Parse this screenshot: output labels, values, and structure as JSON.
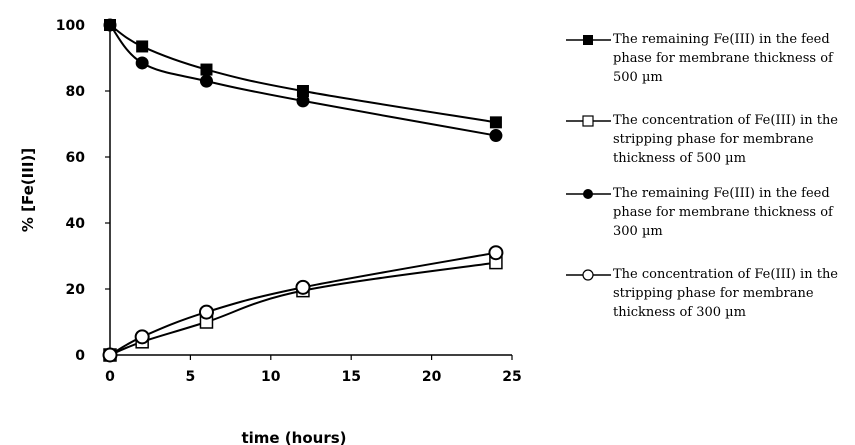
{
  "chart_data": {
    "type": "line",
    "xlabel": "time (hours)",
    "ylabel": "% [Fe(III)]",
    "xlim": [
      0,
      25
    ],
    "ylim": [
      0,
      100
    ],
    "xticks": [
      "0",
      "5",
      "10",
      "15",
      "20",
      "25"
    ],
    "yticks": [
      "0",
      "20",
      "40",
      "60",
      "80",
      "100"
    ],
    "grid": false,
    "legend_position": "right",
    "x": [
      0,
      2,
      6,
      12,
      24
    ],
    "series": [
      {
        "name": "The remaining Fe(III) in the feed phase for membrane thickness of 500 µm",
        "marker": "filled-square",
        "values": [
          100,
          93.5,
          86.5,
          80,
          70.5
        ]
      },
      {
        "name": "The concentration of Fe(III) in the stripping phase for membrane thickness of 500 µm",
        "marker": "open-square",
        "values": [
          0,
          4,
          10,
          19.5,
          28
        ]
      },
      {
        "name": "The remaining Fe(III) in the feed phase for membrane thickness of 300 µm",
        "marker": "filled-circle",
        "values": [
          100,
          88.5,
          83,
          77,
          66.5
        ]
      },
      {
        "name": "The concentration of Fe(III) in the stripping phase for membrane thickness of 300 µm",
        "marker": "open-circle",
        "values": [
          0,
          5.5,
          13,
          20.5,
          31
        ]
      }
    ],
    "line_color": "#000000"
  }
}
